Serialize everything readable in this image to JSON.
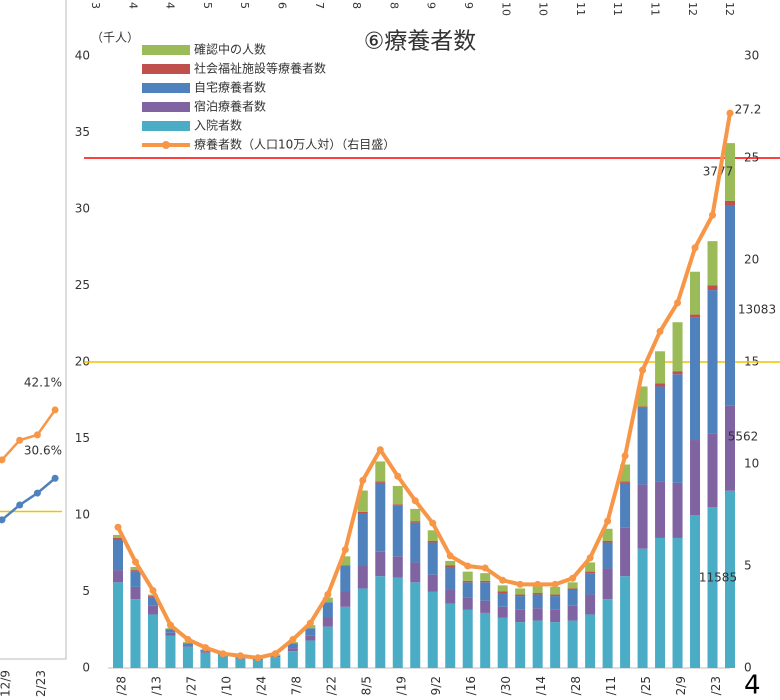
{
  "header_fragments": [
    "3",
    "4",
    "4",
    "5",
    "5",
    "6",
    "7",
    "8",
    "8",
    "9",
    "9",
    "10",
    "10",
    "11",
    "11",
    "11",
    "12",
    "12"
  ],
  "page_number": "4",
  "chart_data": [
    {
      "type": "stacked-bar-line",
      "title": "⑥療養者数",
      "y_label": "（千人）",
      "categories": [
        "/28",
        null,
        "/13",
        null,
        "/27",
        null,
        "/10",
        null,
        "/24",
        null,
        "7/8",
        null,
        "/22",
        null,
        "8/5",
        null,
        "/19",
        null,
        "9/2",
        null,
        "/16",
        null,
        "/30",
        null,
        "/14",
        null,
        "/28",
        null,
        "/11",
        null,
        "/25",
        null,
        "2/9",
        null,
        "/23",
        null
      ],
      "ylim": [
        0,
        40
      ],
      "yticks": [
        0,
        5,
        10,
        15,
        20,
        25,
        30,
        35,
        40
      ],
      "y2lim": [
        0,
        30
      ],
      "y2ticks": [
        0,
        5,
        10,
        15,
        20,
        25,
        30
      ],
      "reference_lines": [
        {
          "value": 25,
          "color": "#ff0000",
          "axis": "y2"
        },
        {
          "value": 15,
          "color": "#f2c200",
          "axis": "y2"
        }
      ],
      "series": [
        {
          "name": "入院者数",
          "color": "#4bacc6",
          "values": [
            5.6,
            4.5,
            3.5,
            2.1,
            1.4,
            1.0,
            0.8,
            0.6,
            0.5,
            0.7,
            1.1,
            1.8,
            2.7,
            4.0,
            5.2,
            6.0,
            5.9,
            5.6,
            5.0,
            4.2,
            3.8,
            3.6,
            3.3,
            3.0,
            3.1,
            3.0,
            3.1,
            3.5,
            4.5,
            6.0,
            7.8,
            8.5,
            8.5,
            10.0,
            10.5,
            11.585
          ],
          "value_labels": [
            null,
            null,
            null,
            null,
            null,
            null,
            null,
            null,
            null,
            null,
            null,
            null,
            null,
            null,
            null,
            null,
            null,
            null,
            null,
            null,
            null,
            null,
            null,
            null,
            null,
            null,
            null,
            null,
            null,
            null,
            null,
            null,
            null,
            null,
            null,
            "11585"
          ]
        },
        {
          "name": "宿泊療養者数",
          "color": "#8064a2",
          "values": [
            0.8,
            0.8,
            0.6,
            0.2,
            0.1,
            0.1,
            0,
            0,
            0,
            0,
            0.2,
            0.3,
            0.6,
            1.0,
            1.5,
            1.6,
            1.4,
            1.3,
            1.1,
            0.9,
            0.8,
            0.8,
            0.7,
            0.8,
            0.8,
            0.8,
            1.0,
            1.3,
            2.0,
            3.2,
            4.2,
            3.7,
            3.6,
            4.9,
            4.8,
            5.562
          ],
          "value_labels": [
            null,
            null,
            null,
            null,
            null,
            null,
            null,
            null,
            null,
            null,
            null,
            null,
            null,
            null,
            null,
            null,
            null,
            null,
            null,
            null,
            null,
            null,
            null,
            null,
            null,
            null,
            null,
            null,
            null,
            null,
            null,
            null,
            null,
            null,
            null,
            "5562"
          ]
        },
        {
          "name": "自宅療養者数",
          "color": "#4f81bd",
          "values": [
            2.0,
            1.0,
            0.5,
            0.2,
            0.1,
            0.1,
            0.1,
            0.1,
            0.1,
            0.1,
            0.3,
            0.5,
            1.0,
            1.7,
            3.4,
            4.5,
            3.3,
            2.6,
            2.1,
            1.5,
            1.0,
            1.2,
            0.9,
            0.9,
            0.9,
            0.9,
            1.0,
            1.4,
            1.7,
            2.9,
            5.0,
            6.2,
            7.1,
            8.0,
            9.4,
            13.083
          ],
          "value_labels": [
            null,
            null,
            null,
            null,
            null,
            null,
            null,
            null,
            null,
            null,
            null,
            null,
            null,
            null,
            null,
            null,
            null,
            null,
            null,
            null,
            null,
            null,
            null,
            null,
            null,
            null,
            null,
            null,
            null,
            null,
            null,
            null,
            null,
            null,
            null,
            "13083"
          ]
        },
        {
          "name": "社会福祉施設等療養者数",
          "color": "#c0504d",
          "values": [
            0.1,
            0.1,
            0.1,
            0.05,
            0,
            0,
            0,
            0,
            0,
            0,
            0,
            0,
            0,
            0,
            0.1,
            0.1,
            0.1,
            0.1,
            0.1,
            0.1,
            0.1,
            0.1,
            0.1,
            0.1,
            0.1,
            0.1,
            0.1,
            0.1,
            0.1,
            0.1,
            0.1,
            0.2,
            0.2,
            0.2,
            0.3,
            0.3
          ]
        },
        {
          "name": "確認中の人数",
          "color": "#9bbb59",
          "values": [
            0.2,
            0.2,
            0.1,
            0.05,
            0.1,
            0,
            0,
            0,
            0,
            0.1,
            0.1,
            0.2,
            0.3,
            0.6,
            1.4,
            1.3,
            1.2,
            0.8,
            0.7,
            0.3,
            0.6,
            0.5,
            0.4,
            0.4,
            0.5,
            0.5,
            0.4,
            0.6,
            0.8,
            1.1,
            1.3,
            2.1,
            3.2,
            2.8,
            2.9,
            3.777
          ],
          "value_labels": [
            null,
            null,
            null,
            null,
            null,
            null,
            null,
            null,
            null,
            null,
            null,
            null,
            null,
            null,
            null,
            null,
            null,
            null,
            null,
            null,
            null,
            null,
            null,
            null,
            null,
            null,
            null,
            null,
            null,
            null,
            null,
            null,
            null,
            null,
            null,
            "3777"
          ]
        },
        {
          "name": "療養者数（人口10万人対）（右目盛）",
          "color": "#f79646",
          "kind": "line",
          "axis": "y2",
          "values": [
            6.9,
            5.2,
            3.8,
            2.1,
            1.4,
            1.0,
            0.7,
            0.6,
            0.5,
            0.7,
            1.4,
            2.2,
            3.6,
            5.8,
            9.2,
            10.7,
            9.4,
            8.2,
            7.1,
            5.5,
            5.0,
            4.9,
            4.3,
            4.1,
            4.1,
            4.1,
            4.4,
            5.4,
            7.2,
            10.4,
            14.6,
            16.5,
            17.9,
            20.6,
            22.2,
            27.2
          ],
          "labeled": [
            35
          ]
        }
      ]
    },
    {
      "type": "line",
      "categories": [
        "12/9",
        null,
        "2/23",
        null
      ],
      "ylim": [
        0,
        100
      ],
      "reference_lines": [
        {
          "value": 25,
          "color": "#f2c200"
        }
      ],
      "series": [
        {
          "color": "#f79646",
          "values": [
            33.7,
            37.0,
            37.9,
            42.1
          ],
          "value_labels": [
            null,
            null,
            null,
            "42.1%"
          ]
        },
        {
          "color": "#4f81bd",
          "values": [
            23.6,
            26.1,
            28.1,
            30.6
          ],
          "value_labels": [
            null,
            null,
            null,
            "30.6%"
          ]
        }
      ]
    }
  ]
}
